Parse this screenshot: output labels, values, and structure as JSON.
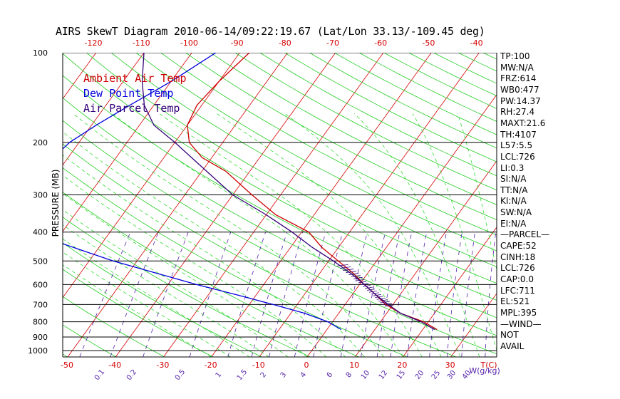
{
  "title": "AIRS SkewT Diagram 2010-06-14/09:22:19.67 (Lat/Lon 33.13/-109.45 deg)",
  "colors": {
    "isotherm": "#d40000",
    "dry_adiabat": "#22cc22",
    "moist_adiabat": "#33dd33",
    "mixing_ratio": "#5522aa",
    "ambient": "#cc0000",
    "dewpoint": "#0000dd",
    "parcel": "#330077"
  },
  "legend": [
    {
      "label": "Ambient Air Temp",
      "color": "#cc0000"
    },
    {
      "label": "Dew Point Temp",
      "color": "#0000dd"
    },
    {
      "label": "Air Parcel Temp",
      "color": "#330077"
    }
  ],
  "side_panel": [
    "TP:100",
    "MW:N/A",
    "FRZ:614",
    "WB0:477",
    "PW:14.37",
    "RH:27.4",
    "MAXT:21.6",
    "TH:4107",
    "L57:5.5",
    "LCL:726",
    "LI:0.3",
    "SI:N/A",
    "TT:N/A",
    "KI:N/A",
    "SW:N/A",
    "EI:N/A",
    "—PARCEL—",
    "CAPE:52",
    "CINH:18",
    "LCL:726",
    "CAP:0.0",
    "LFC:711",
    "EL:521",
    "MPL:395",
    "—WIND—",
    "NOT",
    "AVAIL"
  ],
  "chart_data": {
    "type": "line",
    "title": "AIRS SkewT Diagram 2010-06-14/09:22:19.67 (Lat/Lon 33.13/-109.45 deg)",
    "ylabel": "PRESSURE (MB)",
    "y_scale": "log",
    "ylim": [
      1000,
      100
    ],
    "bottom_temp_range": [
      -50,
      40
    ],
    "top_temp_range": [
      -120,
      -40
    ],
    "bottom_ticks": [
      "-50",
      "-40",
      "-30",
      "-20",
      "-10",
      "0",
      "10",
      "20",
      "30"
    ],
    "bottom_unit": "T(C)",
    "top_ticks": [
      "-120",
      "-110",
      "-100",
      "-90",
      "-80",
      "-70",
      "-60",
      "-50",
      "-40"
    ],
    "y_ticks": [
      "100",
      "200",
      "300",
      "400",
      "500",
      "600",
      "700",
      "800",
      "900",
      "1000"
    ],
    "mixing_ratio_labels": [
      "0.1",
      "0.2",
      "0.5",
      "1",
      "1.5",
      "2",
      "3",
      "4",
      "6",
      "8",
      "10",
      "12",
      "15",
      "20",
      "25",
      "30",
      "40"
    ],
    "mixing_ratio_unit": "W(g/kg)",
    "series": [
      {
        "name": "Ambient Air Temp",
        "color": "#cc0000",
        "points": [
          [
            100,
            -58
          ],
          [
            125,
            -60
          ],
          [
            150,
            -61
          ],
          [
            175,
            -60
          ],
          [
            200,
            -57
          ],
          [
            225,
            -52
          ],
          [
            250,
            -45
          ],
          [
            300,
            -36
          ],
          [
            350,
            -28
          ],
          [
            400,
            -18.5
          ],
          [
            450,
            -13.5
          ],
          [
            500,
            -8
          ],
          [
            550,
            -3
          ],
          [
            600,
            1
          ],
          [
            650,
            5
          ],
          [
            700,
            8.5
          ],
          [
            750,
            13
          ],
          [
            800,
            19
          ],
          [
            850,
            23
          ]
        ]
      },
      {
        "name": "Dew Point Temp",
        "color": "#0000dd",
        "points": [
          [
            100,
            -65
          ],
          [
            125,
            -70
          ],
          [
            150,
            -75
          ],
          [
            175,
            -79
          ],
          [
            200,
            -82
          ],
          [
            250,
            -84
          ],
          [
            300,
            -84
          ],
          [
            350,
            -81.5
          ],
          [
            400,
            -77
          ],
          [
            500,
            -55
          ],
          [
            550,
            -44
          ],
          [
            600,
            -34
          ],
          [
            650,
            -24
          ],
          [
            700,
            -15
          ],
          [
            750,
            -7
          ],
          [
            800,
            -1
          ],
          [
            850,
            3
          ]
        ]
      },
      {
        "name": "Air Parcel Temp",
        "color": "#330077",
        "points": [
          [
            100,
            -80
          ],
          [
            125,
            -76
          ],
          [
            150,
            -72
          ],
          [
            175,
            -67
          ],
          [
            200,
            -60
          ],
          [
            250,
            -49
          ],
          [
            300,
            -40
          ],
          [
            350,
            -30
          ],
          [
            400,
            -22
          ],
          [
            450,
            -15.5
          ],
          [
            500,
            -9
          ],
          [
            550,
            -3.5
          ],
          [
            600,
            1
          ],
          [
            650,
            5
          ],
          [
            700,
            9
          ],
          [
            750,
            13
          ],
          [
            800,
            18.5
          ],
          [
            850,
            22.5
          ]
        ]
      }
    ],
    "grid": true
  }
}
